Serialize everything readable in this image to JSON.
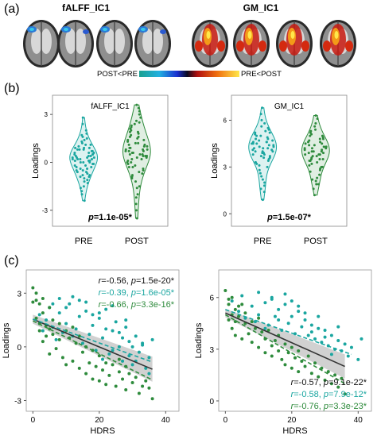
{
  "panel_a": {
    "label": "(a)",
    "left_title": "fALFF_IC1",
    "right_title": "GM_IC1",
    "colorbar_left": "POST<PRE",
    "colorbar_right": "PRE<POST"
  },
  "panel_b": {
    "label": "(b)"
  },
  "panel_c": {
    "label": "(c)"
  },
  "chart_data": [
    {
      "type": "violin",
      "title": "fALFF_IC1",
      "ylabel": "Loadings",
      "categories": [
        "PRE",
        "POST"
      ],
      "yticks": [
        -3,
        0,
        3
      ],
      "ylim": [
        -4,
        4.2
      ],
      "annotation_p": "p",
      "annotation_val": "=1.1e-05*",
      "colors": [
        "#1aa6a0",
        "#2e8b3c"
      ],
      "series": [
        {
          "values": [
            0.8,
            -0.4,
            0.2,
            1.1,
            -0.9,
            0.5,
            0.0,
            -1.2,
            1.6,
            0.3,
            -0.6,
            0.9,
            -0.2,
            0.4,
            1.3,
            -1.5,
            0.1,
            0.7,
            -0.8,
            2.0,
            -0.3,
            0.6,
            -1.0,
            0.2,
            1.0,
            -0.5,
            0.3,
            -1.8,
            0.8,
            0.0,
            1.4,
            -0.7,
            0.5,
            -0.1,
            1.8,
            -1.1,
            0.4,
            0.9,
            -0.4,
            2.4,
            -2.0,
            0.2,
            0.6,
            -0.9,
            1.2,
            -0.2,
            0.1,
            0.7,
            -1.3,
            0.3,
            1.5,
            -0.6,
            0.0,
            0.8,
            -0.3,
            2.8,
            -1.6,
            0.5,
            0.2,
            -0.8,
            1.1,
            0.4,
            -0.1,
            0.6,
            -2.4,
            0.9,
            0.3,
            -0.5,
            1.7,
            0.1
          ]
        },
        {
          "values": [
            0.5,
            1.2,
            -0.3,
            2.0,
            0.8,
            -1.0,
            1.6,
            0.2,
            2.6,
            -0.6,
            1.0,
            0.4,
            3.2,
            -1.5,
            0.7,
            1.8,
            -0.2,
            0.9,
            2.3,
            0.0,
            1.4,
            -0.8,
            0.6,
            3.6,
            -2.0,
            1.1,
            0.3,
            2.8,
            -0.4,
            0.8,
            1.9,
            -1.2,
            0.5,
            1.3,
            -0.1,
            2.1,
            0.7,
            -2.6,
            1.5,
            0.2,
            3.0,
            -0.7,
            1.0,
            0.4,
            2.5,
            -1.6,
            0.6,
            1.7,
            0.1,
            -0.3,
            2.2,
            0.9,
            -3.0,
            1.2,
            0.5,
            3.4,
            -0.5,
            0.8,
            1.4,
            -3.5,
            0.3,
            2.4,
            1.1,
            -0.9,
            0.7,
            1.9,
            0.0,
            -2.2,
            1.6,
            0.4
          ]
        }
      ]
    },
    {
      "type": "violin",
      "title": "GM_IC1",
      "ylabel": "Loadings",
      "categories": [
        "PRE",
        "POST"
      ],
      "yticks": [
        0,
        3,
        6
      ],
      "ylim": [
        -0.8,
        7.6
      ],
      "annotation_p": "p",
      "annotation_val": "=1.5e-07*",
      "colors": [
        "#1aa6a0",
        "#2e8b3c"
      ],
      "series": [
        {
          "values": [
            4.0,
            4.6,
            3.5,
            5.2,
            4.3,
            3.0,
            4.8,
            3.8,
            5.6,
            2.6,
            4.1,
            4.5,
            3.3,
            5.0,
            4.7,
            2.2,
            4.2,
            3.7,
            5.4,
            4.4,
            1.8,
            4.9,
            3.9,
            6.0,
            4.0,
            3.2,
            5.1,
            4.6,
            2.8,
            4.3,
            3.6,
            5.8,
            4.1,
            1.4,
            4.7,
            3.4,
            5.3,
            4.2,
            2.4,
            4.8,
            3.8,
            6.4,
            4.5,
            3.1,
            5.0,
            0.9,
            4.4,
            3.6,
            5.5,
            4.0,
            2.0,
            4.6,
            3.9,
            6.8,
            4.2,
            3.3,
            5.2,
            1.6,
            4.5,
            3.7
          ]
        },
        {
          "values": [
            3.8,
            4.4,
            3.2,
            5.0,
            4.1,
            2.7,
            4.6,
            3.5,
            5.4,
            2.3,
            3.9,
            4.2,
            3.0,
            4.8,
            4.5,
            1.9,
            4.0,
            3.4,
            5.2,
            4.2,
            1.6,
            4.7,
            3.6,
            5.8,
            3.8,
            2.9,
            4.9,
            4.3,
            2.5,
            4.1,
            3.3,
            5.6,
            3.9,
            1.2,
            4.5,
            3.1,
            5.1,
            4.0,
            2.1,
            4.6,
            3.5,
            6.1,
            4.3,
            2.8,
            4.8,
            3.7,
            4.2,
            3.4,
            5.3,
            3.8,
            2.2,
            4.4,
            3.7,
            6.3,
            4.0,
            3.0,
            5.0,
            1.9,
            4.3,
            3.5
          ]
        }
      ]
    },
    {
      "type": "scatter",
      "xlabel": "HDRS",
      "ylabel": "Loadings",
      "xticks": [
        0,
        20,
        40
      ],
      "yticks": [
        -3,
        0,
        3
      ],
      "xlim": [
        -2,
        44
      ],
      "ylim": [
        -3.6,
        4.3
      ],
      "colors": {
        "combined": "#333333",
        "pre": "#1aa6a0",
        "post": "#2e8b3c"
      },
      "fits": [
        {
          "name": "combined",
          "x": [
            0,
            36
          ],
          "y": [
            1.55,
            -1.25
          ],
          "style": "solid"
        },
        {
          "name": "pre",
          "x": [
            0,
            36
          ],
          "y": [
            1.55,
            -0.85
          ],
          "style": "dashed"
        },
        {
          "name": "post",
          "x": [
            0,
            36
          ],
          "y": [
            1.45,
            -1.85
          ],
          "style": "dashed"
        }
      ],
      "stats": [
        {
          "r": "r",
          "r_val": "=-0.56, ",
          "p": "p",
          "p_val": "=1.5e-20*",
          "color": "#111111"
        },
        {
          "r": "r",
          "r_val": "=-0.39, ",
          "p": "p",
          "p_val": "=1.6e-05*",
          "color": "#1aa6a0"
        },
        {
          "r": "r",
          "r_val": "=-0.66, ",
          "p": "p",
          "p_val": "=3.3e-16*",
          "color": "#2e8b3c"
        }
      ],
      "series": [
        {
          "name": "pre",
          "x": [
            2,
            3,
            4,
            5,
            6,
            7,
            8,
            9,
            10,
            11,
            12,
            13,
            14,
            15,
            16,
            17,
            18,
            19,
            20,
            21,
            22,
            23,
            24,
            25,
            26,
            27,
            28,
            29,
            30,
            31,
            32,
            33,
            34,
            35,
            36,
            16,
            18,
            20,
            22,
            24,
            26,
            28,
            30,
            14,
            12,
            10,
            8,
            6,
            24,
            27,
            29,
            31,
            33,
            35,
            21
          ],
          "y": [
            1.8,
            0.9,
            1.5,
            2.2,
            1.1,
            0.4,
            1.9,
            0.8,
            1.3,
            2.4,
            0.6,
            1.0,
            1.7,
            0.2,
            2.5,
            0.7,
            1.2,
            -0.2,
            1.6,
            0.5,
            2.1,
            -0.4,
            0.9,
            1.4,
            0.0,
            -0.8,
            1.1,
            0.3,
            -1.0,
            0.6,
            -0.3,
            0.1,
            -1.2,
            -0.6,
            0.4,
            2.0,
            1.8,
            1.9,
            1.0,
            2.3,
            0.8,
            1.5,
            0.0,
            2.6,
            2.8,
            2.2,
            2.7,
            2.4,
            -0.2,
            0.5,
            -0.5,
            -0.8,
            0.2,
            -1.5,
            -0.7
          ]
        },
        {
          "name": "post",
          "x": [
            0,
            1,
            1,
            2,
            2,
            3,
            3,
            4,
            5,
            5,
            6,
            6,
            7,
            8,
            8,
            9,
            10,
            10,
            11,
            12,
            12,
            13,
            14,
            14,
            15,
            16,
            16,
            17,
            18,
            18,
            19,
            20,
            20,
            21,
            22,
            22,
            23,
            24,
            25,
            26,
            26,
            27,
            28,
            28,
            29,
            30,
            31,
            32,
            33,
            34,
            35,
            36,
            0,
            1,
            2,
            3,
            4,
            5
          ],
          "y": [
            3.3,
            2.6,
            1.6,
            2.4,
            0.9,
            1.9,
            0.3,
            1.2,
            2.2,
            -0.4,
            1.5,
            0.7,
            -0.1,
            1.3,
            0.4,
            -0.6,
            0.9,
            -1.0,
            0.5,
            1.1,
            -0.8,
            0.2,
            -1.2,
            0.6,
            -0.3,
            0.0,
            -1.5,
            -0.9,
            -0.2,
            -1.8,
            -1.1,
            -0.5,
            -1.9,
            -1.3,
            -0.9,
            -2.1,
            -1.6,
            -1.0,
            -2.2,
            -1.4,
            -0.7,
            -1.8,
            -1.1,
            -2.4,
            -1.5,
            -2.0,
            -1.7,
            -2.6,
            -2.2,
            -1.9,
            -2.3,
            -2.9,
            2.5,
            3.0,
            1.3,
            2.7,
            0.6,
            1.0
          ]
        }
      ]
    },
    {
      "type": "scatter",
      "xlabel": "HDRS",
      "ylabel": "Loadings",
      "xticks": [
        0,
        20,
        40
      ],
      "yticks": [
        0,
        3,
        6
      ],
      "xlim": [
        -2,
        44
      ],
      "ylim": [
        -0.6,
        7.6
      ],
      "colors": {
        "combined": "#333333",
        "pre": "#1aa6a0",
        "post": "#2e8b3c"
      },
      "fits": [
        {
          "name": "combined",
          "x": [
            0,
            36
          ],
          "y": [
            5.1,
            2.0
          ],
          "style": "solid"
        },
        {
          "name": "pre",
          "x": [
            0,
            38
          ],
          "y": [
            5.3,
            2.7
          ],
          "style": "dashed"
        },
        {
          "name": "post",
          "x": [
            0,
            36
          ],
          "y": [
            5.0,
            1.0
          ],
          "style": "dashed"
        }
      ],
      "stats": [
        {
          "r": "r",
          "r_val": "=-0.57, ",
          "p": "p",
          "p_val": "=9.1e-22*",
          "color": "#111111"
        },
        {
          "r": "r",
          "r_val": "=-0.58, ",
          "p": "p",
          "p_val": "=7.9e-12*",
          "color": "#1aa6a0"
        },
        {
          "r": "r",
          "r_val": "=-0.76, ",
          "p": "p",
          "p_val": "=3.3e-23*",
          "color": "#2e8b3c"
        }
      ],
      "series": [
        {
          "name": "pre",
          "x": [
            2,
            4,
            5,
            6,
            8,
            9,
            10,
            12,
            13,
            14,
            15,
            16,
            17,
            18,
            19,
            20,
            21,
            22,
            23,
            24,
            25,
            26,
            27,
            28,
            29,
            30,
            31,
            32,
            33,
            34,
            35,
            36,
            37,
            38,
            40,
            41,
            18,
            20,
            22,
            24,
            26,
            28,
            30,
            32,
            34,
            14,
            16,
            12,
            10
          ],
          "y": [
            5.8,
            5.2,
            6.1,
            4.8,
            5.5,
            4.6,
            5.0,
            5.7,
            4.4,
            6.0,
            4.9,
            5.3,
            4.1,
            5.6,
            4.5,
            4.9,
            3.9,
            5.2,
            4.3,
            4.7,
            3.8,
            4.4,
            3.6,
            4.9,
            3.4,
            4.1,
            3.2,
            3.8,
            3.0,
            3.5,
            2.9,
            3.3,
            2.6,
            3.1,
            2.4,
            3.6,
            6.2,
            5.8,
            5.5,
            5.1,
            4.0,
            4.2,
            3.7,
            2.7,
            4.3,
            5.9,
            4.7,
            4.2,
            6.3
          ]
        },
        {
          "name": "post",
          "x": [
            0,
            1,
            1,
            2,
            2,
            3,
            3,
            4,
            5,
            5,
            6,
            6,
            7,
            8,
            8,
            9,
            10,
            10,
            11,
            12,
            12,
            13,
            14,
            14,
            15,
            16,
            16,
            17,
            18,
            18,
            19,
            20,
            20,
            21,
            22,
            22,
            23,
            24,
            25,
            26,
            27,
            28,
            29,
            30,
            31,
            32,
            33,
            34,
            35,
            36,
            1,
            2,
            3,
            4
          ],
          "y": [
            6.4,
            5.6,
            4.7,
            6.0,
            4.2,
            5.3,
            3.8,
            4.9,
            5.6,
            3.6,
            4.5,
            5.1,
            3.9,
            4.6,
            3.4,
            4.2,
            4.8,
            3.1,
            4.0,
            3.6,
            2.8,
            4.1,
            3.2,
            2.6,
            3.5,
            2.9,
            3.8,
            2.4,
            3.3,
            2.1,
            2.8,
            3.1,
            1.9,
            2.5,
            2.9,
            1.7,
            2.3,
            2.0,
            2.6,
            1.6,
            2.2,
            1.4,
            1.9,
            1.2,
            1.7,
            1.0,
            1.5,
            0.8,
            1.3,
            0.4,
            5.9,
            5.0,
            4.6,
            5.5
          ]
        }
      ]
    }
  ]
}
